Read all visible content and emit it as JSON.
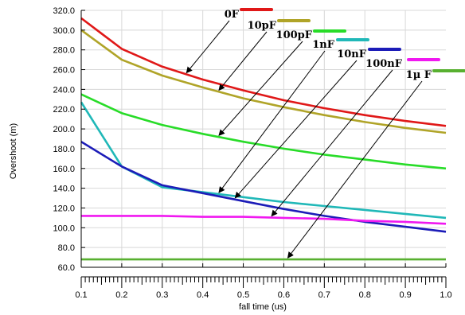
{
  "chart_data": {
    "type": "line",
    "xlabel": "fall time (us)",
    "ylabel": "Overshoot (m)",
    "xlim": [
      0.1,
      1.0
    ],
    "ylim": [
      60.0,
      320.0
    ],
    "x_ticks": [
      "0.1",
      "0.2",
      "0.3",
      "0.4",
      "0.5",
      "0.6",
      "0.7",
      "0.8",
      "0.9",
      "1.0"
    ],
    "y_ticks": [
      "60.0",
      "80.0",
      "100.0",
      "120.0",
      "140.0",
      "160.0",
      "180.0",
      "200.0",
      "220.0",
      "240.0",
      "260.0",
      "280.0",
      "300.0",
      "320.0"
    ],
    "x": [
      0.1,
      0.2,
      0.3,
      0.4,
      0.5,
      0.6,
      0.7,
      0.8,
      0.9,
      1.0
    ],
    "series": [
      {
        "name": "0F",
        "color": "#e01818",
        "values": [
          312,
          281,
          263,
          250,
          239,
          229,
          221,
          214,
          208,
          203
        ],
        "arrow_target_x": 0.36
      },
      {
        "name": "10pF",
        "color": "#b0a428",
        "values": [
          300,
          270,
          254,
          242,
          231,
          222,
          214,
          207,
          201,
          196
        ],
        "arrow_target_x": 0.44
      },
      {
        "name": "100pF",
        "color": "#28dc28",
        "values": [
          235,
          216,
          204,
          195,
          187,
          180,
          174,
          169,
          164,
          160
        ],
        "arrow_target_x": 0.44
      },
      {
        "name": "1nF",
        "color": "#20b8b8",
        "values": [
          227,
          162,
          141,
          136,
          131,
          126,
          122,
          118,
          114,
          110
        ],
        "arrow_target_x": 0.44
      },
      {
        "name": "10nF",
        "color": "#1c1cb8",
        "values": [
          187,
          162,
          143,
          135,
          127,
          119,
          112,
          106,
          101,
          96
        ],
        "arrow_target_x": 0.48
      },
      {
        "name": "100nF",
        "color": "#f018f0",
        "values": [
          112,
          112,
          112,
          111,
          111,
          110,
          109,
          107,
          106,
          104
        ],
        "arrow_target_x": 0.57
      },
      {
        "name": "1µ F",
        "color": "#58b030",
        "values": [
          68,
          68,
          68,
          68,
          68,
          68,
          68,
          68,
          68,
          68
        ],
        "arrow_target_x": 0.61
      }
    ]
  }
}
